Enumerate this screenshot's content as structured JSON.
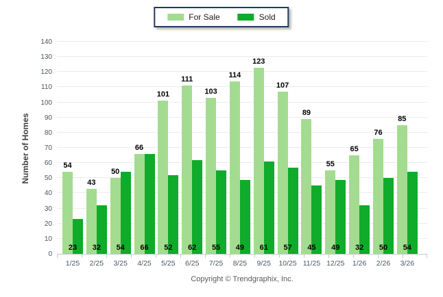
{
  "legend": {
    "for_sale_label": "For Sale",
    "sold_label": "Sold"
  },
  "axes": {
    "y_title": "Number of Homes"
  },
  "footer": {
    "copyright": "Copyright © Trendgraphix, Inc."
  },
  "colors": {
    "for_sale": "#A3DC90",
    "sold": "#0FAB2A",
    "legend_border": "#1E3A5F",
    "gridline": "#ECECEC",
    "axis_text": "#4A5560",
    "value_label": "#000000"
  },
  "chart_data": {
    "type": "bar",
    "categories": [
      "1/25",
      "2/25",
      "3/25",
      "4/25",
      "5/25",
      "6/25",
      "7/25",
      "8/25",
      "9/25",
      "10/25",
      "11/25",
      "12/25",
      "1/26",
      "2/26",
      "3/26"
    ],
    "series": [
      {
        "name": "For Sale",
        "color": "#A3DC90",
        "values": [
          54,
          43,
          50,
          66,
          101,
          111,
          103,
          114,
          123,
          107,
          89,
          55,
          65,
          76,
          85
        ]
      },
      {
        "name": "Sold",
        "color": "#0FAB2A",
        "values": [
          23,
          32,
          54,
          66,
          52,
          62,
          55,
          49,
          61,
          57,
          45,
          49,
          32,
          50,
          54
        ]
      }
    ],
    "title": "",
    "xlabel": "",
    "ylabel": "Number of Homes",
    "ylim": [
      0,
      140
    ],
    "ytick_step": 10,
    "grid": true,
    "legend_position": "top-center",
    "value_label_placement": {
      "for_sale": "above-bar",
      "sold": "inside-bar-bottom"
    }
  }
}
